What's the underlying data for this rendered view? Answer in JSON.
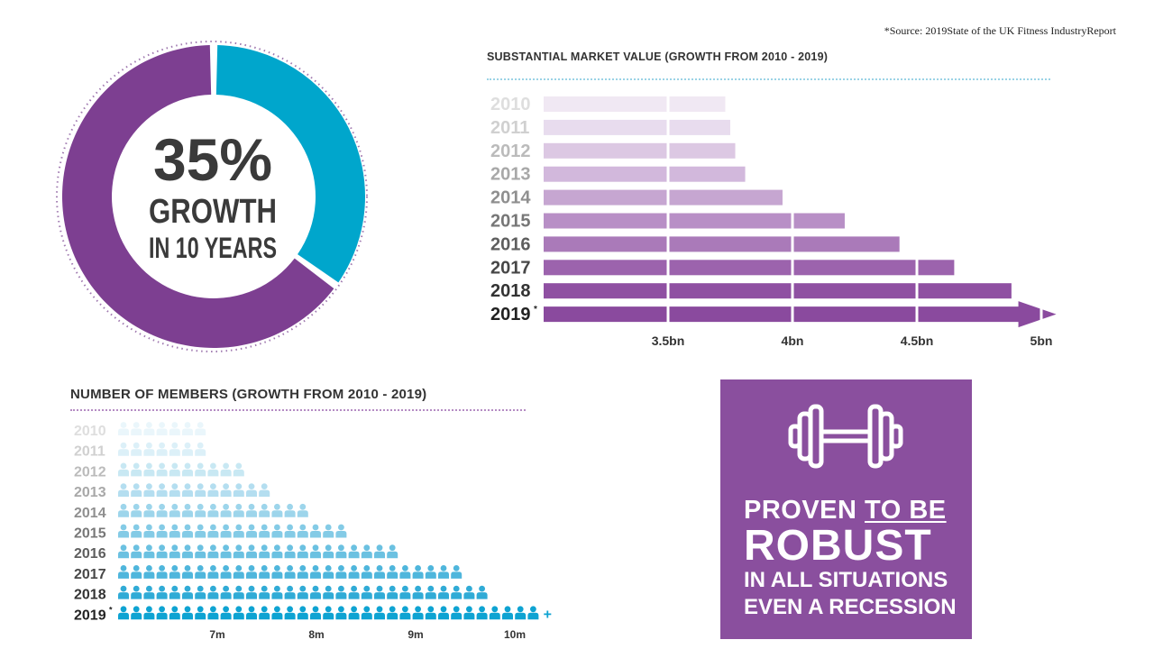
{
  "source": "*Source: 2019State of the UK Fitness IndustryReport",
  "donut": {
    "value": "35%",
    "line1": "GROWTH",
    "line2": "IN 10 YEARS",
    "highlight_fraction": 0.35,
    "colors": {
      "highlight": "#00a6cc",
      "rest": "#7d3f91"
    }
  },
  "chart_data": [
    {
      "type": "bar",
      "title": "SUBSTANTIAL MARKET VALUE (GROWTH FROM 2010 - 2019)",
      "categories": [
        "2010",
        "2011",
        "2012",
        "2013",
        "2014",
        "2015",
        "2016",
        "2017",
        "2018",
        "2019"
      ],
      "category_marks": [
        "",
        "",
        "",
        "",
        "",
        "",
        "",
        "",
        "",
        "*"
      ],
      "values": [
        3.73,
        3.75,
        3.77,
        3.81,
        3.96,
        4.21,
        4.43,
        4.65,
        4.88,
        5.06
      ],
      "unit": "bn",
      "tick_labels": [
        "3.5bn",
        "4bn",
        "4.5bn",
        "5bn"
      ],
      "ticks": [
        3.5,
        4.0,
        4.5,
        5.0
      ],
      "xlim": [
        3.0,
        5.0
      ],
      "orientation": "horizontal",
      "colors": [
        "#f0e8f3",
        "#e8dcee",
        "#dcc8e3",
        "#d2b8dc",
        "#c6a6d1",
        "#b88fc6",
        "#aa7ab9",
        "#9c63ad",
        "#8f50a2",
        "#8a4a9e"
      ]
    },
    {
      "type": "bar",
      "title": "NUMBER OF MEMBERS (GROWTH FROM 2010 - 2019)",
      "categories": [
        "2010",
        "2011",
        "2012",
        "2013",
        "2014",
        "2015",
        "2016",
        "2017",
        "2018",
        "2019"
      ],
      "category_marks": [
        "",
        "",
        "",
        "",
        "",
        "",
        "",
        "",
        "",
        "*"
      ],
      "values": [
        6.9,
        6.9,
        7.3,
        7.6,
        8.0,
        8.3,
        8.9,
        9.5,
        9.8,
        10.3
      ],
      "value_suffix_marks": [
        "",
        "",
        "",
        "",
        "",
        "",
        "",
        "",
        "",
        "+"
      ],
      "unit": "m",
      "tick_labels": [
        "7m",
        "8m",
        "9m",
        "10m"
      ],
      "ticks": [
        7,
        8,
        9,
        10
      ],
      "orientation": "horizontal",
      "colors": [
        "#eaf6fb",
        "#dcf0f8",
        "#c8e8f3",
        "#b4def0",
        "#9dd5eb",
        "#84cbe6",
        "#6bc1e1",
        "#4fb6dc",
        "#30abd6",
        "#0ea3d2"
      ]
    }
  ],
  "robust": {
    "line1a": "PROVEN ",
    "line1b": "TO BE",
    "line2": "ROBUST",
    "line3": "IN ALL SITUATIONS",
    "line4": "EVEN A RECESSION",
    "icon": "dumbbell-icon",
    "background": "#8a4f9e"
  }
}
